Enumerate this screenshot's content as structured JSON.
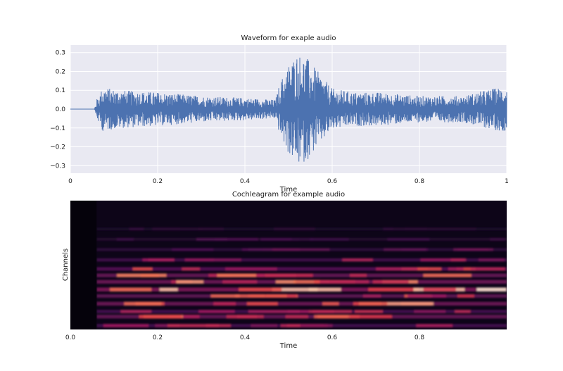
{
  "chart_data": [
    {
      "type": "line",
      "title": "Waveform for exaple audio",
      "xlabel": "Time",
      "ylabel": "",
      "xlim": [
        0,
        1
      ],
      "ylim": [
        -0.34,
        0.34
      ],
      "xticks": [
        0,
        0.2,
        0.4,
        0.6,
        0.8,
        1
      ],
      "xtick_labels": [
        "0",
        "0.2",
        "0.4",
        "0.6",
        "0.8",
        "1"
      ],
      "yticks": [
        -0.3,
        -0.2,
        -0.1,
        0.0,
        0.1,
        0.2,
        0.3
      ],
      "ytick_labels": [
        "−0.3",
        "−0.2",
        "−0.1",
        "0.0",
        "0.1",
        "0.2",
        "0.3"
      ],
      "grid": true,
      "background": "#e9e9f2",
      "line_color": "#4c72b0",
      "series": [
        {
          "envelope": {
            "t": [
              0.0,
              0.055,
              0.06,
              0.075,
              0.09,
              0.12,
              0.2,
              0.3,
              0.4,
              0.47,
              0.48,
              0.5,
              0.52,
              0.54,
              0.56,
              0.6,
              0.65,
              0.7,
              0.8,
              0.9,
              0.95,
              0.99,
              1.0
            ],
            "amp": [
              0.0,
              0.0,
              0.05,
              0.12,
              0.11,
              0.1,
              0.09,
              0.07,
              0.06,
              0.05,
              0.14,
              0.24,
              0.3,
              0.28,
              0.22,
              0.11,
              0.09,
              0.09,
              0.07,
              0.07,
              0.1,
              0.12,
              0.11
            ]
          }
        }
      ]
    },
    {
      "type": "heatmap",
      "title": "Cochleagram for example audio",
      "xlabel": "Time",
      "ylabel": "Channels",
      "xlim": [
        0,
        1
      ],
      "xticks": [
        0,
        0.2,
        0.4,
        0.6,
        0.8
      ],
      "xtick_labels": [
        "0.0",
        "0.2",
        "0.4",
        "0.6",
        "0.8"
      ],
      "colormap": "rocket",
      "bands": [
        {
          "y": 0.97,
          "level": 0.55
        },
        {
          "y": 0.9,
          "level": 0.75
        },
        {
          "y": 0.86,
          "level": 0.55
        },
        {
          "y": 0.8,
          "level": 0.8
        },
        {
          "y": 0.74,
          "level": 0.7
        },
        {
          "y": 0.69,
          "level": 0.9
        },
        {
          "y": 0.63,
          "level": 0.8
        },
        {
          "y": 0.58,
          "level": 0.75
        },
        {
          "y": 0.53,
          "level": 0.65
        },
        {
          "y": 0.46,
          "level": 0.5
        },
        {
          "y": 0.38,
          "level": 0.35
        },
        {
          "y": 0.3,
          "level": 0.25
        },
        {
          "y": 0.22,
          "level": 0.18
        }
      ],
      "onset": 0.06
    }
  ]
}
